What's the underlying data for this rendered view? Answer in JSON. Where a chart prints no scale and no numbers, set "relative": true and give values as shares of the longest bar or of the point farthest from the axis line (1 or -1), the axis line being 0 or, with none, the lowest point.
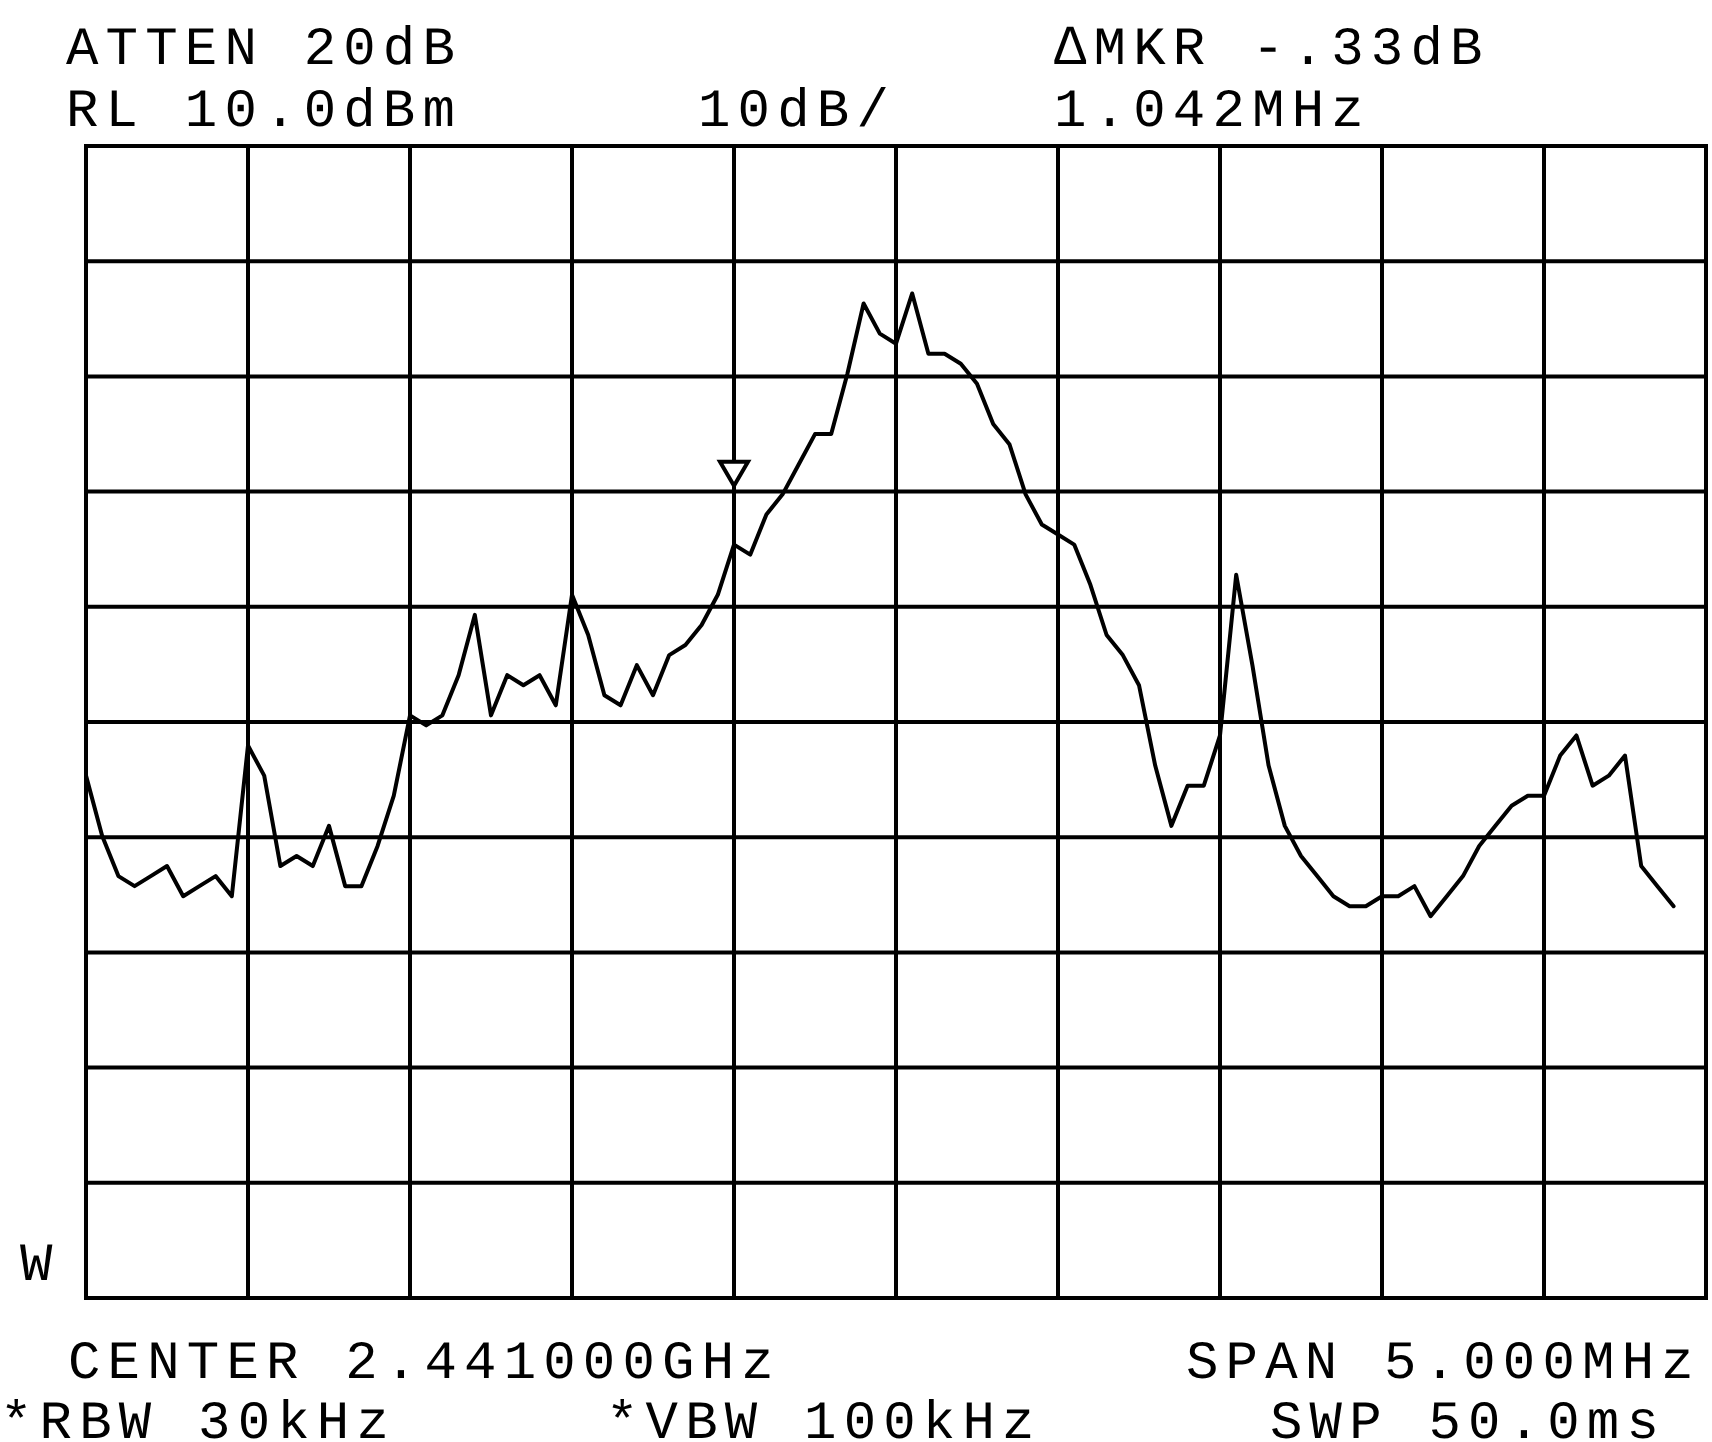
{
  "chart_data": {
    "type": "line",
    "relative": true,
    "categories": [
      null,
      null,
      null,
      null,
      null,
      null,
      null,
      null,
      null,
      null,
      null,
      null,
      null,
      null,
      null,
      null,
      null,
      null,
      null,
      null,
      null,
      null,
      null,
      null,
      null,
      null,
      null,
      null,
      null,
      null,
      null,
      null,
      null,
      null,
      null,
      null,
      null,
      null,
      null,
      null,
      null,
      null,
      null,
      null,
      null,
      null,
      null,
      null,
      null,
      null,
      null,
      null,
      null,
      null,
      null,
      null,
      null,
      null,
      null,
      null,
      null,
      null,
      null,
      null,
      null,
      null,
      null,
      null,
      null,
      null,
      null,
      null,
      null,
      null,
      null,
      null,
      null,
      null,
      null,
      null,
      null,
      null,
      null,
      null,
      null,
      null,
      null,
      null,
      null,
      null,
      null,
      null,
      null,
      null,
      null,
      null,
      null,
      null,
      null
    ],
    "grid": true,
    "series": [
      {
        "color": "#000000",
        "marker": "none",
        "line_style": "solid",
        "values": [
          0.52,
          0.46,
          0.42,
          0.41,
          0.42,
          0.43,
          0.4,
          0.41,
          0.42,
          0.4,
          0.55,
          0.52,
          0.43,
          0.44,
          0.43,
          0.47,
          0.41,
          0.41,
          0.45,
          0.5,
          0.58,
          0.57,
          0.58,
          0.62,
          0.68,
          0.58,
          0.62,
          0.61,
          0.62,
          0.59,
          0.7,
          0.66,
          0.6,
          0.59,
          0.63,
          0.6,
          0.64,
          0.65,
          0.67,
          0.7,
          0.75,
          0.74,
          0.78,
          0.8,
          0.83,
          0.86,
          0.86,
          0.92,
          0.99,
          0.96,
          0.95,
          1.0,
          0.94,
          0.94,
          0.93,
          0.91,
          0.87,
          0.85,
          0.8,
          0.77,
          0.76,
          0.75,
          0.71,
          0.66,
          0.64,
          0.61,
          0.53,
          0.47,
          0.51,
          0.51,
          0.56,
          0.72,
          0.63,
          0.53,
          0.47,
          0.44,
          0.42,
          0.4,
          0.39,
          0.39,
          0.4,
          0.4,
          0.41,
          0.38,
          0.4,
          0.42,
          0.45,
          0.47,
          0.49,
          0.5,
          0.5,
          0.54,
          0.56,
          0.51,
          0.52,
          0.54,
          0.43,
          0.41,
          0.39
        ]
      }
    ],
    "annotations": [
      "ATTEN 20dB",
      "RL 10.0dBm",
      "10dB/",
      "∆MKR -.33dB",
      "1.042MHz",
      "W",
      "CENTER 2.441000GHz",
      "SPAN 5.000MHz",
      "*RBW 30kHz",
      "*VBW 100kHz",
      "SWP 50.0ms"
    ]
  }
}
